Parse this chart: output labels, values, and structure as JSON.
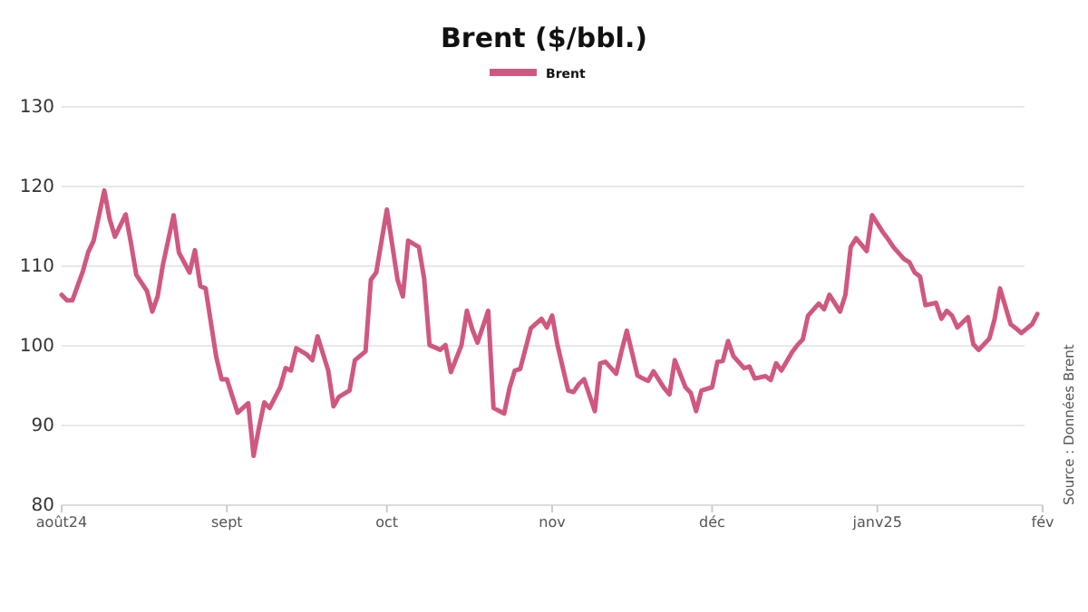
{
  "chart_data": {
    "type": "line",
    "title": "Brent ($/bbl.)",
    "x": [
      "2024-08-01",
      "2024-08-02",
      "2024-08-03",
      "2024-08-05",
      "2024-08-06",
      "2024-08-07",
      "2024-08-09",
      "2024-08-10",
      "2024-08-11",
      "2024-08-13",
      "2024-08-14",
      "2024-08-15",
      "2024-08-17",
      "2024-08-18",
      "2024-08-19",
      "2024-08-20",
      "2024-08-22",
      "2024-08-23",
      "2024-08-25",
      "2024-08-26",
      "2024-08-27",
      "2024-08-28",
      "2024-08-30",
      "2024-08-31",
      "2024-09-01",
      "2024-09-03",
      "2024-09-05",
      "2024-09-06",
      "2024-09-07",
      "2024-09-08",
      "2024-09-09",
      "2024-09-11",
      "2024-09-12",
      "2024-09-13",
      "2024-09-14",
      "2024-09-16",
      "2024-09-17",
      "2024-09-18",
      "2024-09-20",
      "2024-09-21",
      "2024-09-22",
      "2024-09-24",
      "2024-09-25",
      "2024-09-27",
      "2024-09-28",
      "2024-09-29",
      "2024-10-01",
      "2024-10-03",
      "2024-10-04",
      "2024-10-05",
      "2024-10-07",
      "2024-10-08",
      "2024-10-09",
      "2024-10-11",
      "2024-10-12",
      "2024-10-13",
      "2024-10-15",
      "2024-10-16",
      "2024-10-17",
      "2024-10-18",
      "2024-10-20",
      "2024-10-21",
      "2024-10-23",
      "2024-10-24",
      "2024-10-25",
      "2024-10-26",
      "2024-10-28",
      "2024-10-30",
      "2024-10-31",
      "2024-11-01",
      "2024-11-02",
      "2024-11-04",
      "2024-11-05",
      "2024-11-06",
      "2024-11-07",
      "2024-11-09",
      "2024-11-10",
      "2024-11-11",
      "2024-11-13",
      "2024-11-14",
      "2024-11-15",
      "2024-11-17",
      "2024-11-18",
      "2024-11-19",
      "2024-11-20",
      "2024-11-22",
      "2024-11-23",
      "2024-11-24",
      "2024-11-26",
      "2024-11-27",
      "2024-11-28",
      "2024-11-29",
      "2024-12-01",
      "2024-12-02",
      "2024-12-03",
      "2024-12-04",
      "2024-12-05",
      "2024-12-07",
      "2024-12-08",
      "2024-12-09",
      "2024-12-11",
      "2024-12-12",
      "2024-12-13",
      "2024-12-14",
      "2024-12-16",
      "2024-12-17",
      "2024-12-18",
      "2024-12-19",
      "2024-12-21",
      "2024-12-22",
      "2024-12-23",
      "2024-12-25",
      "2024-12-26",
      "2024-12-27",
      "2024-12-28",
      "2024-12-30",
      "2024-12-31",
      "2025-01-02",
      "2025-01-03",
      "2025-01-04",
      "2025-01-06",
      "2025-01-07",
      "2025-01-08",
      "2025-01-09",
      "2025-01-10",
      "2025-01-12",
      "2025-01-13",
      "2025-01-14",
      "2025-01-15",
      "2025-01-16",
      "2025-01-18",
      "2025-01-19",
      "2025-01-20",
      "2025-01-22",
      "2025-01-23",
      "2025-01-24",
      "2025-01-26",
      "2025-01-27",
      "2025-01-28",
      "2025-01-30",
      "2025-01-31"
    ],
    "series": [
      {
        "name": "Brent",
        "color": "#d0587e",
        "values": [
          106.4,
          105.7,
          105.7,
          109.4,
          111.8,
          113.2,
          119.5,
          115.9,
          113.7,
          116.5,
          112.9,
          108.9,
          106.9,
          104.3,
          106.2,
          110.2,
          116.4,
          111.7,
          109.2,
          112.0,
          107.5,
          107.2,
          98.6,
          95.8,
          95.8,
          91.6,
          92.8,
          86.2,
          89.7,
          92.9,
          92.2,
          94.8,
          97.2,
          96.9,
          99.7,
          98.9,
          98.2,
          101.2,
          96.9,
          92.4,
          93.6,
          94.4,
          98.2,
          99.3,
          108.3,
          109.2,
          117.1,
          108.3,
          106.2,
          113.2,
          112.4,
          108.4,
          100.1,
          99.5,
          100.1,
          96.7,
          100.1,
          104.4,
          102.1,
          100.4,
          104.4,
          92.2,
          91.5,
          94.7,
          96.9,
          97.1,
          102.2,
          103.4,
          102.3,
          103.8,
          100.1,
          94.4,
          94.2,
          95.2,
          95.8,
          91.8,
          97.8,
          98.0,
          96.5,
          99.3,
          101.9,
          96.3,
          95.9,
          95.6,
          96.8,
          94.7,
          93.9,
          98.2,
          94.8,
          94.1,
          91.8,
          94.4,
          94.8,
          98.0,
          98.1,
          100.6,
          98.7,
          97.2,
          97.4,
          95.9,
          96.2,
          95.7,
          97.8,
          96.9,
          99.2,
          100.1,
          100.8,
          103.8,
          105.3,
          104.6,
          106.4,
          104.3,
          106.4,
          112.4,
          113.5,
          111.9,
          116.4,
          114.3,
          113.4,
          112.4,
          110.9,
          110.5,
          109.2,
          108.7,
          105.1,
          105.4,
          103.4,
          104.4,
          103.8,
          102.3,
          103.6,
          100.2,
          99.5,
          100.9,
          103.4,
          107.2,
          102.7,
          102.2,
          101.6,
          102.7,
          104.0
        ]
      }
    ],
    "xlim": [
      "2024-08-01",
      "2025-02-01"
    ],
    "xticks": [
      {
        "value": "2024-08-01",
        "label": "août24"
      },
      {
        "value": "2024-09-01",
        "label": "sept"
      },
      {
        "value": "2024-10-01",
        "label": "oct"
      },
      {
        "value": "2024-11-01",
        "label": "nov"
      },
      {
        "value": "2024-12-01",
        "label": "déc"
      },
      {
        "value": "2025-01-01",
        "label": "janv25"
      },
      {
        "value": "2025-02-01",
        "label": "fév"
      }
    ],
    "ylim": [
      80,
      130
    ],
    "yticks": [
      80,
      90,
      100,
      110,
      120,
      130
    ],
    "grid": "y",
    "legend": "top",
    "line_style": "solid",
    "marker": "none",
    "annotations": [
      "Source : Données Brent"
    ]
  }
}
